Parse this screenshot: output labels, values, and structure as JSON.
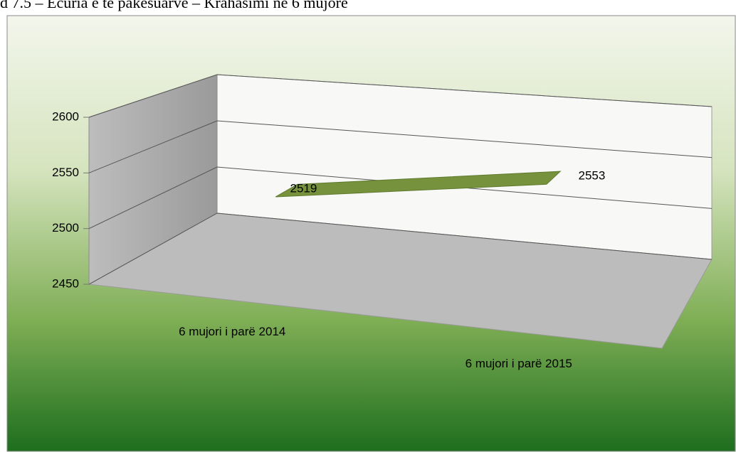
{
  "chart_data": {
    "type": "line",
    "title": "d 7.5 – Ecuria e të pakësuarve – Krahasimi në 6 mujore",
    "categories": [
      "6 mujori i parë 2014",
      "6 mujori i parë 2015"
    ],
    "values": [
      2519,
      2553
    ],
    "color": "#76923c",
    "ylim": [
      2450,
      2600
    ],
    "yticks": [
      2450,
      2500,
      2550,
      2600
    ],
    "grid": true
  }
}
